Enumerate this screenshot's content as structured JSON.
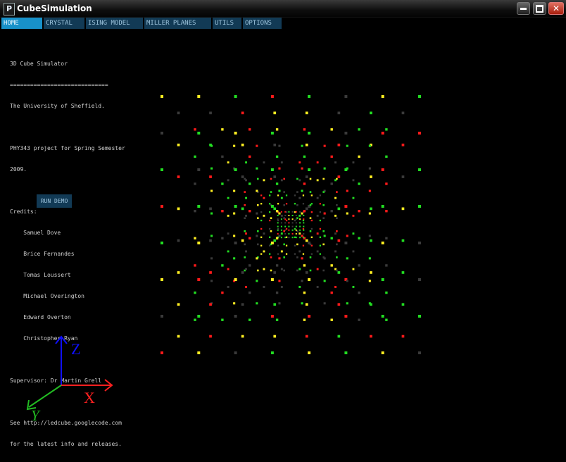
{
  "window": {
    "title": "CubeSimulation",
    "app_icon_glyph": "P"
  },
  "menu": {
    "tabs": [
      {
        "label": "HOME",
        "active": true
      },
      {
        "label": "CRYSTAL",
        "active": false
      },
      {
        "label": "ISING MODEL",
        "active": false
      },
      {
        "label": "MILLER PLANES",
        "active": false
      },
      {
        "label": "UTILS",
        "active": false
      },
      {
        "label": "OPTIONS",
        "active": false
      }
    ]
  },
  "home": {
    "lines": [
      "3D Cube Simulator",
      "=============================",
      "The University of Sheffield.",
      "",
      "PHY343 project for Spring Semester",
      "2009.",
      "",
      "Credits:",
      "    Samuel Dove",
      "    Brice Fernandes",
      "    Tomas Loussert",
      "    Michael Overington",
      "    Edward Overton",
      "    Christopher Ryan",
      "",
      "Supervisor: Dr Martin Grell",
      "",
      "See http://ledcube.googlecode.com",
      "for the latest info and releases."
    ],
    "run_button": "RUN DEMO"
  },
  "axes": {
    "z_label": "Z",
    "x_label": "X",
    "y_label": "Y",
    "z_color": "#1010ff",
    "x_color": "#ff2020",
    "y_color": "#22bb22"
  },
  "cube": {
    "colors": {
      "red": "#ff1a1a",
      "green": "#22dd22",
      "yellow": "#ffee22",
      "gray": "#3a3a3a"
    },
    "led_count_per_edge": 8
  },
  "colors": {
    "tab_bg": "#123a55",
    "tab_active_bg": "#1891c9",
    "tab_text": "#9fc6df"
  }
}
